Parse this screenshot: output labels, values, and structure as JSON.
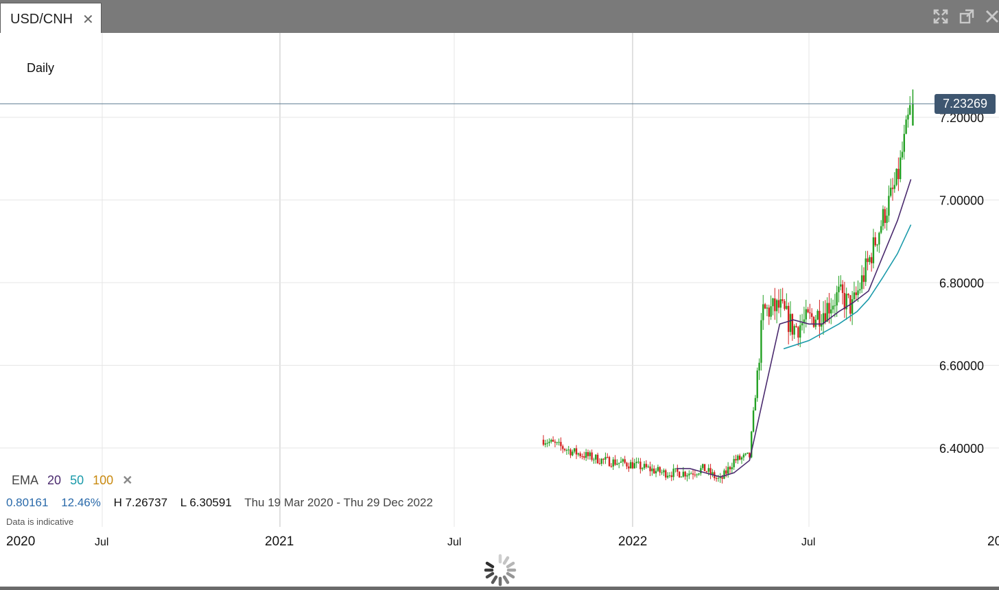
{
  "tab": {
    "title": "USD/CNH",
    "close_icon": "close-icon"
  },
  "window_controls": [
    "expand-icon",
    "popout-icon",
    "close-icon"
  ],
  "interval": "Daily",
  "price_tag": "7.23269",
  "ema": {
    "label": "EMA",
    "periods": [
      {
        "value": "20",
        "color": "#4a2a6e"
      },
      {
        "value": "50",
        "color": "#1a9aaa"
      },
      {
        "value": "100",
        "color": "#c98a10"
      }
    ]
  },
  "stats": {
    "change": "0.80161",
    "change_pct": "12.46%",
    "high": "H 7.26737",
    "low": "L 6.30591",
    "range": "Thu 19 Mar 2020 - Thu 29 Dec 2022"
  },
  "note": "Data is indicative",
  "colors": {
    "up": "#22a022",
    "down": "#d42020",
    "grid": "#e6e6e6",
    "price_line": "#5a7a90"
  },
  "chart_data": {
    "type": "candlestick",
    "title": "USD/CNH",
    "interval": "Daily",
    "x_ticks": [
      "2020",
      "Jul",
      "2021",
      "Jul",
      "2022",
      "Jul",
      "20"
    ],
    "y_ticks": [
      "6.40000",
      "6.60000",
      "6.80000",
      "7.00000",
      "7.20000"
    ],
    "current_price": 7.23269,
    "high": 7.26737,
    "low": 6.30591,
    "series": [
      {
        "name": "USD/CNH",
        "kind": "ohlc_close",
        "points": [
          [
            "2021-10-01",
            6.42
          ],
          [
            "2021-11-01",
            6.39
          ],
          [
            "2021-12-01",
            6.37
          ],
          [
            "2022-01-01",
            6.36
          ],
          [
            "2022-02-01",
            6.34
          ],
          [
            "2022-03-01",
            6.34
          ],
          [
            "2022-03-15",
            6.35
          ],
          [
            "2022-04-01",
            6.32
          ],
          [
            "2022-04-15",
            6.37
          ],
          [
            "2022-05-01",
            6.38
          ],
          [
            "2022-05-15",
            6.73
          ],
          [
            "2022-06-01",
            6.74
          ],
          [
            "2022-06-15",
            6.69
          ],
          [
            "2022-07-01",
            6.71
          ],
          [
            "2022-07-15",
            6.73
          ],
          [
            "2022-08-01",
            6.77
          ],
          [
            "2022-08-15",
            6.74
          ],
          [
            "2022-09-01",
            6.85
          ],
          [
            "2022-09-15",
            6.95
          ],
          [
            "2022-10-01",
            7.05
          ],
          [
            "2022-10-15",
            7.23
          ]
        ]
      },
      {
        "name": "EMA 20",
        "kind": "line",
        "points": [
          [
            "2022-02-15",
            6.35
          ],
          [
            "2022-03-01",
            6.35
          ],
          [
            "2022-04-01",
            6.33
          ],
          [
            "2022-04-15",
            6.34
          ],
          [
            "2022-05-01",
            6.37
          ],
          [
            "2022-05-15",
            6.52
          ],
          [
            "2022-06-01",
            6.7
          ],
          [
            "2022-06-15",
            6.71
          ],
          [
            "2022-07-01",
            6.7
          ],
          [
            "2022-07-15",
            6.7
          ],
          [
            "2022-08-01",
            6.73
          ],
          [
            "2022-08-15",
            6.75
          ],
          [
            "2022-09-01",
            6.78
          ],
          [
            "2022-09-15",
            6.86
          ],
          [
            "2022-10-01",
            6.95
          ],
          [
            "2022-10-15",
            7.05
          ]
        ]
      },
      {
        "name": "EMA 50",
        "kind": "line",
        "points": [
          [
            "2022-06-05",
            6.64
          ],
          [
            "2022-07-01",
            6.66
          ],
          [
            "2022-08-01",
            6.7
          ],
          [
            "2022-08-20",
            6.73
          ],
          [
            "2022-09-01",
            6.76
          ],
          [
            "2022-09-15",
            6.81
          ],
          [
            "2022-10-01",
            6.87
          ],
          [
            "2022-10-15",
            6.94
          ]
        ]
      }
    ]
  }
}
